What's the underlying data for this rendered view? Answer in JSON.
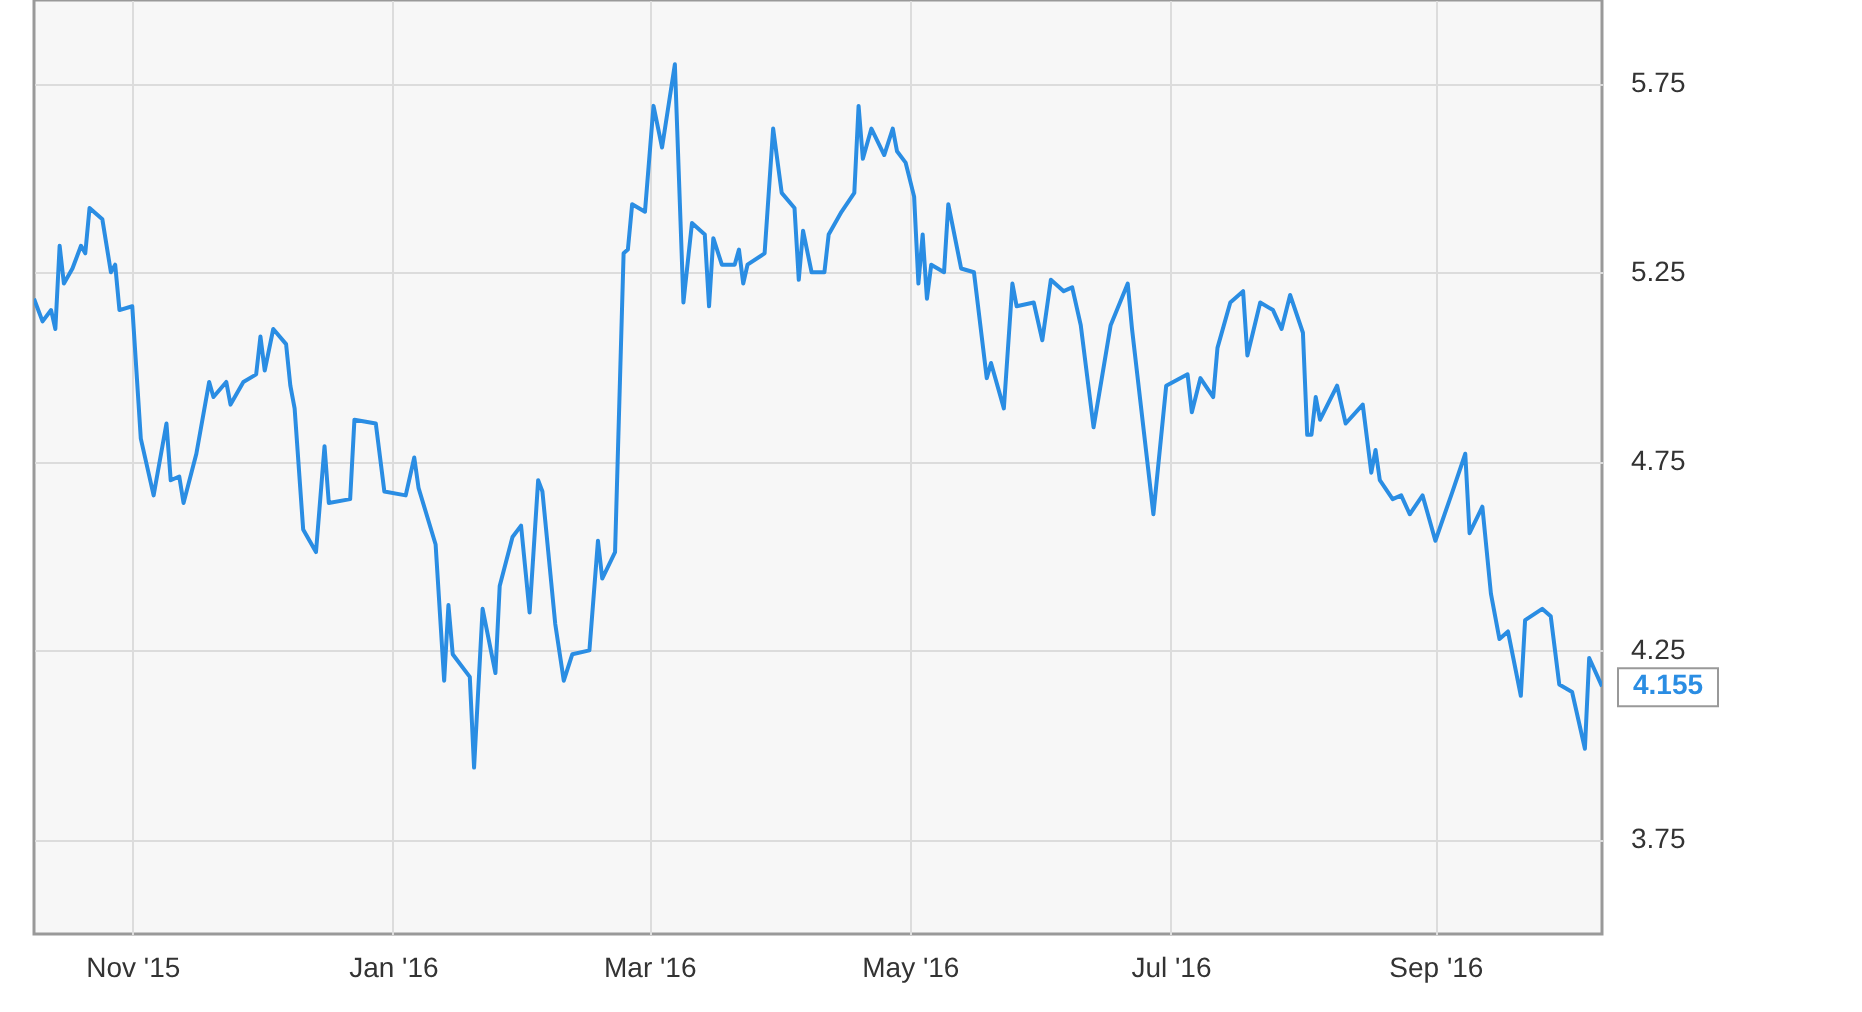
{
  "chart_data": {
    "type": "line",
    "x": [
      "2015-10-09",
      "2015-10-11",
      "2015-10-13",
      "2015-10-14",
      "2015-10-15",
      "2015-10-16",
      "2015-10-18",
      "2015-10-20",
      "2015-10-21",
      "2015-10-22",
      "2015-10-25",
      "2015-10-27",
      "2015-10-28",
      "2015-10-29",
      "2015-11-01",
      "2015-11-03",
      "2015-11-06",
      "2015-11-09",
      "2015-11-10",
      "2015-11-12",
      "2015-11-13",
      "2015-11-16",
      "2015-11-19",
      "2015-11-20",
      "2015-11-23",
      "2015-11-24",
      "2015-11-27",
      "2015-11-30",
      "2015-12-01",
      "2015-12-02",
      "2015-12-04",
      "2015-12-07",
      "2015-12-08",
      "2015-12-09",
      "2015-12-11",
      "2015-12-14",
      "2015-12-16",
      "2015-12-17",
      "2015-12-22",
      "2015-12-23",
      "2015-12-28",
      "2015-12-30",
      "2016-01-04",
      "2016-01-06",
      "2016-01-07",
      "2016-01-11",
      "2016-01-13",
      "2016-01-14",
      "2016-01-15",
      "2016-01-19",
      "2016-01-20",
      "2016-01-22",
      "2016-01-25",
      "2016-01-26",
      "2016-01-29",
      "2016-01-31",
      "2016-02-02",
      "2016-02-04",
      "2016-02-05",
      "2016-02-08",
      "2016-02-10",
      "2016-02-12",
      "2016-02-16",
      "2016-02-18",
      "2016-02-19",
      "2016-02-22",
      "2016-02-24",
      "2016-02-25",
      "2016-02-26",
      "2016-02-29",
      "2016-03-02",
      "2016-03-04",
      "2016-03-07",
      "2016-03-09",
      "2016-03-11",
      "2016-03-14",
      "2016-03-15",
      "2016-03-16",
      "2016-03-18",
      "2016-03-21",
      "2016-03-22",
      "2016-03-23",
      "2016-03-24",
      "2016-03-28",
      "2016-03-30",
      "2016-04-01",
      "2016-04-04",
      "2016-04-05",
      "2016-04-06",
      "2016-04-08",
      "2016-04-11",
      "2016-04-12",
      "2016-04-15",
      "2016-04-18",
      "2016-04-19",
      "2016-04-20",
      "2016-04-22",
      "2016-04-25",
      "2016-04-27",
      "2016-04-28",
      "2016-04-30",
      "2016-05-02",
      "2016-05-03",
      "2016-05-04",
      "2016-05-05",
      "2016-05-06",
      "2016-05-09",
      "2016-05-10",
      "2016-05-13",
      "2016-05-16",
      "2016-05-19",
      "2016-05-20",
      "2016-05-23",
      "2016-05-25",
      "2016-05-26",
      "2016-05-30",
      "2016-06-01",
      "2016-06-03",
      "2016-06-06",
      "2016-06-08",
      "2016-06-10",
      "2016-06-13",
      "2016-06-17",
      "2016-06-21",
      "2016-06-22",
      "2016-06-27",
      "2016-06-30",
      "2016-07-05",
      "2016-07-06",
      "2016-07-08",
      "2016-07-11",
      "2016-07-12",
      "2016-07-15",
      "2016-07-18",
      "2016-07-19",
      "2016-07-22",
      "2016-07-25",
      "2016-07-27",
      "2016-07-29",
      "2016-08-01",
      "2016-08-02",
      "2016-08-03",
      "2016-08-04",
      "2016-08-05",
      "2016-08-09",
      "2016-08-11",
      "2016-08-15",
      "2016-08-17",
      "2016-08-18",
      "2016-08-19",
      "2016-08-22",
      "2016-08-24",
      "2016-08-26",
      "2016-08-29",
      "2016-09-01",
      "2016-09-05",
      "2016-09-08",
      "2016-09-09",
      "2016-09-12",
      "2016-09-14",
      "2016-09-16",
      "2016-09-18",
      "2016-09-21",
      "2016-09-22",
      "2016-09-26",
      "2016-09-28",
      "2016-09-30",
      "2016-10-03",
      "2016-10-06",
      "2016-10-07",
      "2016-10-10"
    ],
    "series": [
      {
        "color": "#2a8de3",
        "values": [
          5.18,
          5.12,
          5.15,
          5.1,
          5.32,
          5.22,
          5.26,
          5.32,
          5.3,
          5.42,
          5.39,
          5.25,
          5.27,
          5.15,
          5.16,
          4.81,
          4.66,
          4.85,
          4.7,
          4.71,
          4.64,
          4.77,
          4.96,
          4.92,
          4.96,
          4.9,
          4.96,
          4.98,
          5.08,
          4.99,
          5.1,
          5.06,
          4.95,
          4.89,
          4.57,
          4.51,
          4.79,
          4.64,
          4.65,
          4.86,
          4.85,
          4.67,
          4.66,
          4.76,
          4.68,
          4.53,
          4.17,
          4.37,
          4.24,
          4.18,
          3.94,
          4.36,
          4.19,
          4.42,
          4.55,
          4.58,
          4.35,
          4.7,
          4.67,
          4.32,
          4.17,
          4.24,
          4.25,
          4.54,
          4.44,
          4.51,
          5.3,
          5.31,
          5.43,
          5.41,
          5.69,
          5.58,
          5.8,
          5.17,
          5.38,
          5.35,
          5.16,
          5.34,
          5.27,
          5.27,
          5.31,
          5.22,
          5.27,
          5.3,
          5.63,
          5.46,
          5.42,
          5.23,
          5.36,
          5.25,
          5.25,
          5.35,
          5.41,
          5.46,
          5.69,
          5.55,
          5.63,
          5.56,
          5.63,
          5.57,
          5.54,
          5.45,
          5.22,
          5.35,
          5.18,
          5.27,
          5.25,
          5.43,
          5.26,
          5.25,
          4.97,
          5.01,
          4.89,
          5.22,
          5.16,
          5.17,
          5.07,
          5.23,
          5.2,
          5.21,
          5.11,
          4.84,
          5.11,
          5.22,
          5.1,
          4.61,
          4.95,
          4.98,
          4.88,
          4.97,
          4.92,
          5.05,
          5.17,
          5.2,
          5.03,
          5.17,
          5.15,
          5.1,
          5.19,
          5.09,
          4.82,
          4.82,
          4.92,
          4.86,
          4.95,
          4.85,
          4.9,
          4.72,
          4.78,
          4.7,
          4.65,
          4.66,
          4.61,
          4.66,
          4.54,
          4.67,
          4.77,
          4.56,
          4.63,
          4.4,
          4.28,
          4.3,
          4.13,
          4.33,
          4.36,
          4.34,
          4.16,
          4.14,
          3.99,
          4.23,
          4.155
        ]
      }
    ],
    "xlim": [
      "2015-10-09",
      "2016-10-10"
    ],
    "xticks": [
      {
        "value": "2015-11-01",
        "label": "Nov '15"
      },
      {
        "value": "2016-01-01",
        "label": "Jan '16"
      },
      {
        "value": "2016-03-01",
        "label": "Mar '16"
      },
      {
        "value": "2016-05-01",
        "label": "May '16"
      },
      {
        "value": "2016-07-01",
        "label": "Jul '16"
      },
      {
        "value": "2016-09-01",
        "label": "Sep '16"
      }
    ],
    "ylim": [
      3.5,
      5.97
    ],
    "yticks": [
      3.75,
      4.25,
      4.75,
      5.25,
      5.75
    ],
    "grid": true,
    "annotations": [
      {
        "text": "4.155",
        "x": "2016-10-10",
        "y": 4.155
      }
    ]
  }
}
